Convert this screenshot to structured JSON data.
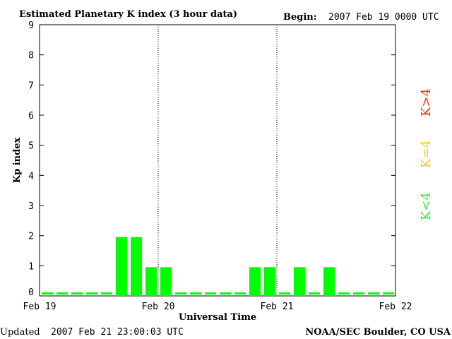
{
  "header": {
    "title": "Estimated Planetary K index (3 hour data)",
    "begin_label": "Begin:",
    "begin_value": "2007 Feb 19 0000 UTC"
  },
  "footer": {
    "updated_label": "Updated",
    "updated_value": "2007 Feb 21 23:00:03 UTC",
    "source": "NOAA/SEC Boulder, CO USA"
  },
  "legend": [
    {
      "label": "K>4",
      "color": "#ff3300"
    },
    {
      "label": "K=4",
      "color": "#ffcc00"
    },
    {
      "label": "K<4",
      "color": "#33ee33"
    }
  ],
  "chart_data": {
    "type": "bar",
    "title": "Estimated Planetary K index (3 hour data)",
    "xlabel": "Universal Time",
    "ylabel": "Kp index",
    "ylim": [
      0,
      9
    ],
    "yticks": [
      "0",
      "1",
      "2",
      "3",
      "4",
      "5",
      "6",
      "7",
      "8",
      "9"
    ],
    "xticks": [
      "Feb 19",
      "Feb 20",
      "Feb 21",
      "Feb 22"
    ],
    "day_separators": true,
    "bar_color": "#00ff00",
    "values": [
      0,
      0,
      0,
      0,
      0,
      2,
      2,
      1,
      1,
      0,
      0,
      0,
      0,
      0,
      1,
      1,
      0,
      1,
      0,
      1,
      0,
      0,
      0,
      0
    ]
  }
}
